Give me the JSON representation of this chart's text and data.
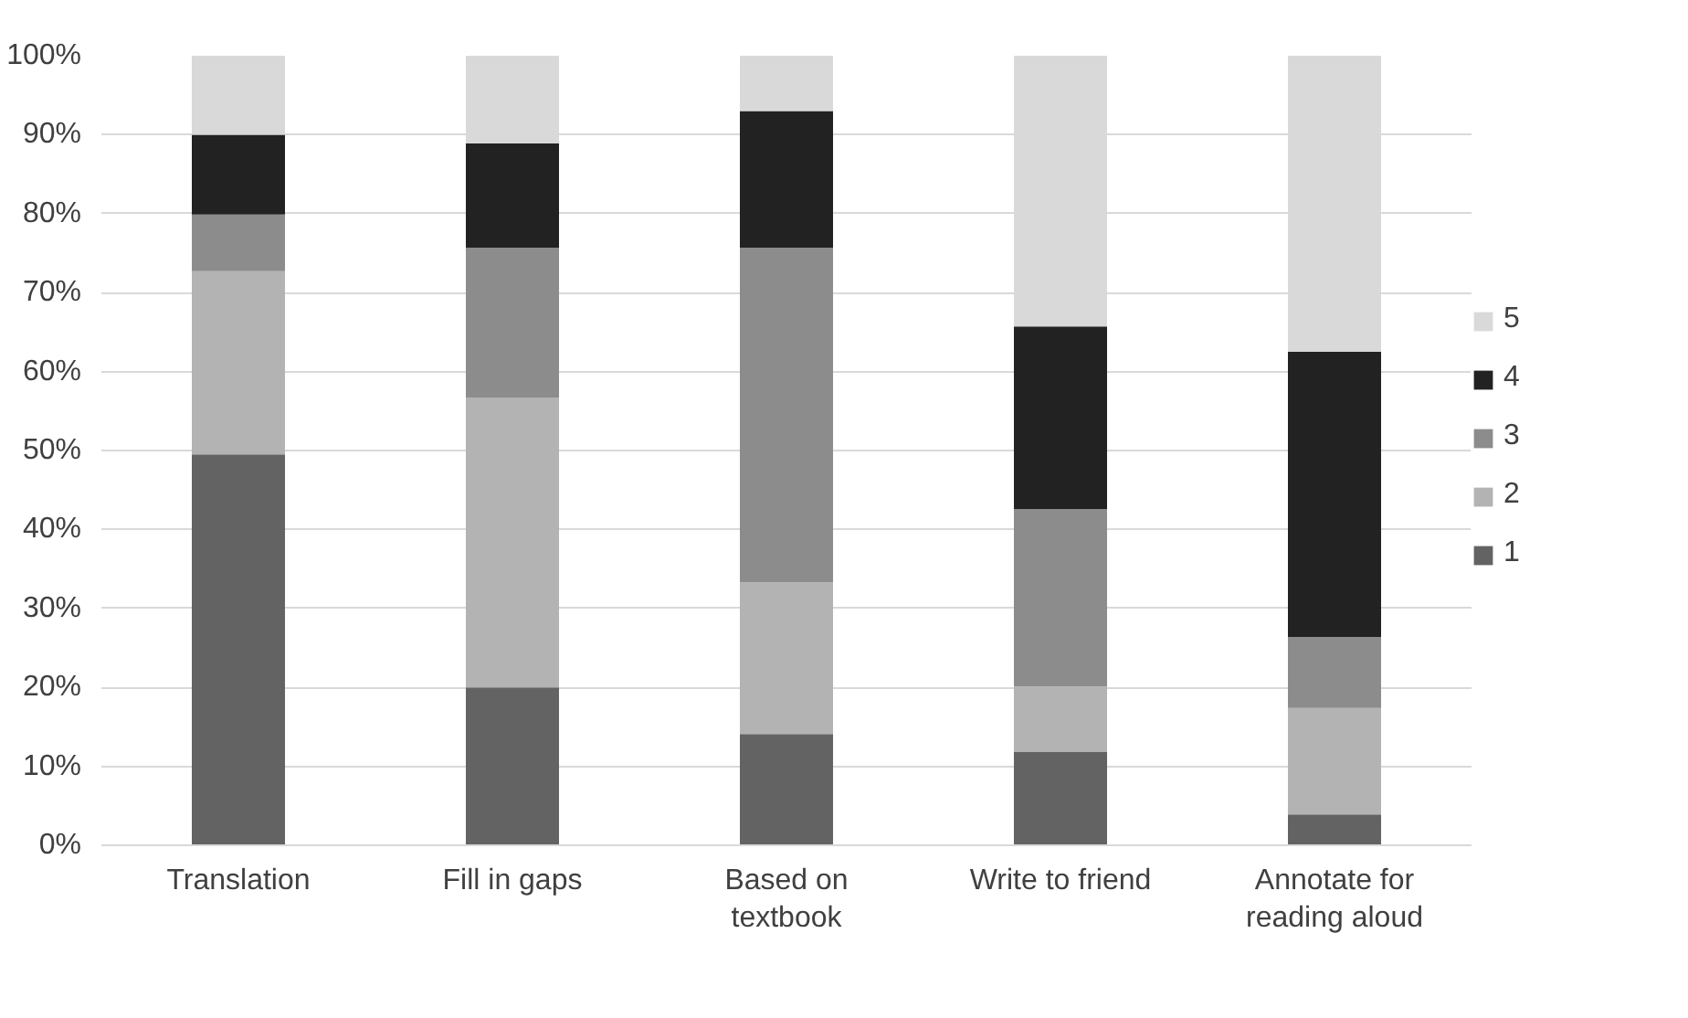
{
  "chart_data": {
    "type": "bar",
    "stacked": true,
    "categories": [
      "Translation",
      "Fill in gaps",
      "Based on textbook",
      "Write to friend",
      "Annotate for reading aloud"
    ],
    "series": [
      {
        "name": "1",
        "color": "#636363",
        "values": [
          49.5,
          20,
          14.1,
          11.8,
          3.9
        ]
      },
      {
        "name": "2",
        "color": "#b3b3b3",
        "values": [
          23.2,
          36.7,
          19.2,
          8.3,
          13.5
        ]
      },
      {
        "name": "3",
        "color": "#8c8c8c",
        "values": [
          7.2,
          19,
          42.4,
          22.5,
          9
        ]
      },
      {
        "name": "4",
        "color": "#222222",
        "values": [
          10.1,
          13.2,
          17.3,
          23.1,
          36.1
        ]
      },
      {
        "name": "5",
        "color": "#d9d9d9",
        "values": [
          10,
          11.1,
          7,
          34.3,
          37.5
        ]
      }
    ],
    "ylim": [
      0,
      100
    ],
    "yticks": [
      {
        "value": 0,
        "label": "0%"
      },
      {
        "value": 10,
        "label": "10%"
      },
      {
        "value": 20,
        "label": "20%"
      },
      {
        "value": 30,
        "label": "30%"
      },
      {
        "value": 40,
        "label": "40%"
      },
      {
        "value": 50,
        "label": "50%"
      },
      {
        "value": 60,
        "label": "60%"
      },
      {
        "value": 70,
        "label": "70%"
      },
      {
        "value": 80,
        "label": "80%"
      },
      {
        "value": 90,
        "label": "90%"
      },
      {
        "value": 100,
        "label": "100%"
      }
    ],
    "grid": "y",
    "legend": "right"
  }
}
